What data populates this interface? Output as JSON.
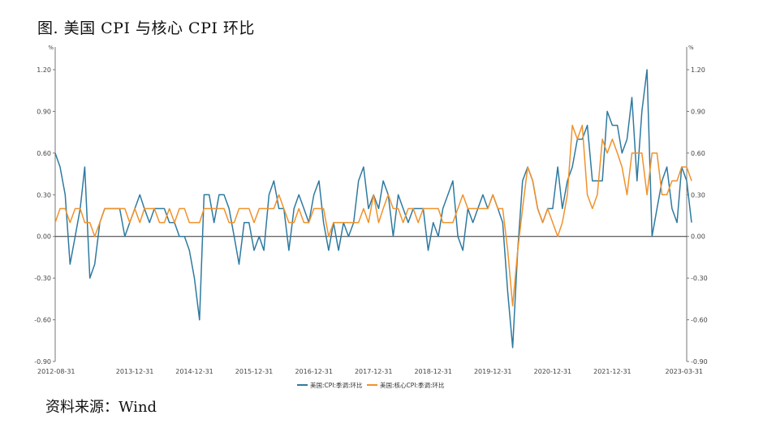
{
  "title": "图. 美国 CPI 与核心 CPI 环比",
  "source": "资料来源：Wind",
  "chart_data": {
    "type": "line",
    "y_unit_left": "%",
    "y_unit_right": "%",
    "ylim": [
      -0.9,
      1.2
    ],
    "yticks": [
      "1.20",
      "0.90",
      "0.60",
      "0.30",
      "0.00",
      "-0.30",
      "-0.60",
      "-0.90"
    ],
    "xlim": [
      "2012-08-31",
      "2023-03-31"
    ],
    "xticks": [
      "2012-08-31",
      "2013-12-31",
      "2014-12-31",
      "2015-12-31",
      "2016-12-31",
      "2017-12-31",
      "2018-12-31",
      "2019-12-31",
      "2020-12-31",
      "2021-12-31",
      "2023-03-31"
    ],
    "legend_position": "bottom-center",
    "series": [
      {
        "name": "美国:CPI:季调:环比",
        "color": "#2e7aa0",
        "points": [
          [
            "2012-08-31",
            0.6
          ],
          [
            "2012-09-30",
            0.5
          ],
          [
            "2012-10-31",
            0.3
          ],
          [
            "2012-11-30",
            -0.2
          ],
          [
            "2012-12-31",
            0.0
          ],
          [
            "2013-01-31",
            0.2
          ],
          [
            "2013-02-28",
            0.5
          ],
          [
            "2013-03-31",
            -0.3
          ],
          [
            "2013-04-30",
            -0.2
          ],
          [
            "2013-05-31",
            0.1
          ],
          [
            "2013-06-30",
            0.2
          ],
          [
            "2013-07-31",
            0.2
          ],
          [
            "2013-08-31",
            0.2
          ],
          [
            "2013-09-30",
            0.2
          ],
          [
            "2013-10-31",
            0.0
          ],
          [
            "2013-11-30",
            0.1
          ],
          [
            "2013-12-31",
            0.2
          ],
          [
            "2014-01-31",
            0.3
          ],
          [
            "2014-02-28",
            0.2
          ],
          [
            "2014-03-31",
            0.1
          ],
          [
            "2014-04-30",
            0.2
          ],
          [
            "2014-05-31",
            0.2
          ],
          [
            "2014-06-30",
            0.2
          ],
          [
            "2014-07-31",
            0.1
          ],
          [
            "2014-08-31",
            0.1
          ],
          [
            "2014-09-30",
            0.0
          ],
          [
            "2014-10-31",
            0.0
          ],
          [
            "2014-11-30",
            -0.1
          ],
          [
            "2014-12-31",
            -0.3
          ],
          [
            "2015-01-31",
            -0.6
          ],
          [
            "2015-02-28",
            0.3
          ],
          [
            "2015-03-31",
            0.3
          ],
          [
            "2015-04-30",
            0.1
          ],
          [
            "2015-05-31",
            0.3
          ],
          [
            "2015-06-30",
            0.3
          ],
          [
            "2015-07-31",
            0.2
          ],
          [
            "2015-08-31",
            0.0
          ],
          [
            "2015-09-30",
            -0.2
          ],
          [
            "2015-10-31",
            0.1
          ],
          [
            "2015-11-30",
            0.1
          ],
          [
            "2015-12-31",
            -0.1
          ],
          [
            "2016-01-31",
            0.0
          ],
          [
            "2016-02-29",
            -0.1
          ],
          [
            "2016-03-31",
            0.3
          ],
          [
            "2016-04-30",
            0.4
          ],
          [
            "2016-05-31",
            0.2
          ],
          [
            "2016-06-30",
            0.2
          ],
          [
            "2016-07-31",
            -0.1
          ],
          [
            "2016-08-31",
            0.2
          ],
          [
            "2016-09-30",
            0.3
          ],
          [
            "2016-10-31",
            0.2
          ],
          [
            "2016-11-30",
            0.1
          ],
          [
            "2016-12-31",
            0.3
          ],
          [
            "2017-01-31",
            0.4
          ],
          [
            "2017-02-28",
            0.1
          ],
          [
            "2017-03-31",
            -0.1
          ],
          [
            "2017-04-30",
            0.1
          ],
          [
            "2017-05-31",
            -0.1
          ],
          [
            "2017-06-30",
            0.1
          ],
          [
            "2017-07-31",
            0.0
          ],
          [
            "2017-08-31",
            0.1
          ],
          [
            "2017-09-30",
            0.4
          ],
          [
            "2017-10-31",
            0.5
          ],
          [
            "2017-11-30",
            0.2
          ],
          [
            "2017-12-31",
            0.3
          ],
          [
            "2018-01-31",
            0.2
          ],
          [
            "2018-02-28",
            0.4
          ],
          [
            "2018-03-31",
            0.3
          ],
          [
            "2018-04-30",
            0.0
          ],
          [
            "2018-05-31",
            0.3
          ],
          [
            "2018-06-30",
            0.2
          ],
          [
            "2018-07-31",
            0.1
          ],
          [
            "2018-08-31",
            0.2
          ],
          [
            "2018-09-30",
            0.2
          ],
          [
            "2018-10-31",
            0.2
          ],
          [
            "2018-11-30",
            -0.1
          ],
          [
            "2018-12-31",
            0.1
          ],
          [
            "2019-01-31",
            0.0
          ],
          [
            "2019-02-28",
            0.2
          ],
          [
            "2019-03-31",
            0.3
          ],
          [
            "2019-04-30",
            0.4
          ],
          [
            "2019-05-31",
            0.0
          ],
          [
            "2019-06-30",
            -0.1
          ],
          [
            "2019-07-31",
            0.2
          ],
          [
            "2019-08-31",
            0.1
          ],
          [
            "2019-09-30",
            0.2
          ],
          [
            "2019-10-31",
            0.3
          ],
          [
            "2019-11-30",
            0.2
          ],
          [
            "2019-12-31",
            0.3
          ],
          [
            "2020-01-31",
            0.2
          ],
          [
            "2020-02-29",
            0.1
          ],
          [
            "2020-03-31",
            -0.4
          ],
          [
            "2020-04-30",
            -0.8
          ],
          [
            "2020-05-31",
            -0.1
          ],
          [
            "2020-06-30",
            0.4
          ],
          [
            "2020-07-31",
            0.5
          ],
          [
            "2020-08-31",
            0.4
          ],
          [
            "2020-09-30",
            0.2
          ],
          [
            "2020-10-31",
            0.1
          ],
          [
            "2020-11-30",
            0.2
          ],
          [
            "2020-12-31",
            0.2
          ],
          [
            "2021-01-31",
            0.5
          ],
          [
            "2021-02-28",
            0.2
          ],
          [
            "2021-03-31",
            0.4
          ],
          [
            "2021-04-30",
            0.5
          ],
          [
            "2021-05-31",
            0.7
          ],
          [
            "2021-06-30",
            0.7
          ],
          [
            "2021-07-31",
            0.8
          ],
          [
            "2021-08-31",
            0.4
          ],
          [
            "2021-09-30",
            0.4
          ],
          [
            "2021-10-31",
            0.4
          ],
          [
            "2021-11-30",
            0.9
          ],
          [
            "2021-12-31",
            0.8
          ],
          [
            "2022-01-31",
            0.8
          ],
          [
            "2022-02-28",
            0.6
          ],
          [
            "2022-03-31",
            0.7
          ],
          [
            "2022-04-30",
            1.0
          ],
          [
            "2022-05-31",
            0.4
          ],
          [
            "2022-06-30",
            0.9
          ],
          [
            "2022-07-31",
            1.2
          ],
          [
            "2022-08-31",
            0.0
          ],
          [
            "2022-09-30",
            0.2
          ],
          [
            "2022-10-31",
            0.4
          ],
          [
            "2022-11-30",
            0.5
          ],
          [
            "2022-12-31",
            0.2
          ],
          [
            "2023-01-31",
            0.1
          ],
          [
            "2023-02-28",
            0.5
          ],
          [
            "2023-03-31",
            0.4
          ],
          [
            "2023-04-30",
            0.1
          ]
        ]
      },
      {
        "name": "美国:核心CPI:季调:环比",
        "color": "#f0922a",
        "points": [
          [
            "2012-08-31",
            0.1
          ],
          [
            "2012-09-30",
            0.2
          ],
          [
            "2012-10-31",
            0.2
          ],
          [
            "2012-11-30",
            0.1
          ],
          [
            "2012-12-31",
            0.2
          ],
          [
            "2013-01-31",
            0.2
          ],
          [
            "2013-02-28",
            0.1
          ],
          [
            "2013-03-31",
            0.1
          ],
          [
            "2013-04-30",
            0.0
          ],
          [
            "2013-05-31",
            0.1
          ],
          [
            "2013-06-30",
            0.2
          ],
          [
            "2013-07-31",
            0.2
          ],
          [
            "2013-08-31",
            0.2
          ],
          [
            "2013-09-30",
            0.2
          ],
          [
            "2013-10-31",
            0.2
          ],
          [
            "2013-11-30",
            0.1
          ],
          [
            "2013-12-31",
            0.2
          ],
          [
            "2014-01-31",
            0.1
          ],
          [
            "2014-02-28",
            0.2
          ],
          [
            "2014-03-31",
            0.2
          ],
          [
            "2014-04-30",
            0.2
          ],
          [
            "2014-05-31",
            0.1
          ],
          [
            "2014-06-30",
            0.1
          ],
          [
            "2014-07-31",
            0.2
          ],
          [
            "2014-08-31",
            0.1
          ],
          [
            "2014-09-30",
            0.2
          ],
          [
            "2014-10-31",
            0.2
          ],
          [
            "2014-11-30",
            0.1
          ],
          [
            "2014-12-31",
            0.1
          ],
          [
            "2015-01-31",
            0.1
          ],
          [
            "2015-02-28",
            0.2
          ],
          [
            "2015-03-31",
            0.2
          ],
          [
            "2015-04-30",
            0.2
          ],
          [
            "2015-05-31",
            0.2
          ],
          [
            "2015-06-30",
            0.2
          ],
          [
            "2015-07-31",
            0.1
          ],
          [
            "2015-08-31",
            0.1
          ],
          [
            "2015-09-30",
            0.2
          ],
          [
            "2015-10-31",
            0.2
          ],
          [
            "2015-11-30",
            0.2
          ],
          [
            "2015-12-31",
            0.1
          ],
          [
            "2016-01-31",
            0.2
          ],
          [
            "2016-02-29",
            0.2
          ],
          [
            "2016-03-31",
            0.2
          ],
          [
            "2016-04-30",
            0.2
          ],
          [
            "2016-05-31",
            0.3
          ],
          [
            "2016-06-30",
            0.2
          ],
          [
            "2016-07-31",
            0.1
          ],
          [
            "2016-08-31",
            0.1
          ],
          [
            "2016-09-30",
            0.2
          ],
          [
            "2016-10-31",
            0.1
          ],
          [
            "2016-11-30",
            0.1
          ],
          [
            "2016-12-31",
            0.2
          ],
          [
            "2017-01-31",
            0.2
          ],
          [
            "2017-02-28",
            0.2
          ],
          [
            "2017-03-31",
            0.0
          ],
          [
            "2017-04-30",
            0.1
          ],
          [
            "2017-05-31",
            0.1
          ],
          [
            "2017-06-30",
            0.1
          ],
          [
            "2017-07-31",
            0.1
          ],
          [
            "2017-08-31",
            0.1
          ],
          [
            "2017-09-30",
            0.1
          ],
          [
            "2017-10-31",
            0.2
          ],
          [
            "2017-11-30",
            0.1
          ],
          [
            "2017-12-31",
            0.3
          ],
          [
            "2018-01-31",
            0.1
          ],
          [
            "2018-02-28",
            0.2
          ],
          [
            "2018-03-31",
            0.3
          ],
          [
            "2018-04-30",
            0.2
          ],
          [
            "2018-05-31",
            0.2
          ],
          [
            "2018-06-30",
            0.1
          ],
          [
            "2018-07-31",
            0.2
          ],
          [
            "2018-08-31",
            0.2
          ],
          [
            "2018-09-30",
            0.1
          ],
          [
            "2018-10-31",
            0.2
          ],
          [
            "2018-11-30",
            0.2
          ],
          [
            "2018-12-31",
            0.2
          ],
          [
            "2019-01-31",
            0.2
          ],
          [
            "2019-02-28",
            0.1
          ],
          [
            "2019-03-31",
            0.1
          ],
          [
            "2019-04-30",
            0.1
          ],
          [
            "2019-05-31",
            0.2
          ],
          [
            "2019-06-30",
            0.3
          ],
          [
            "2019-07-31",
            0.2
          ],
          [
            "2019-08-31",
            0.2
          ],
          [
            "2019-09-30",
            0.2
          ],
          [
            "2019-10-31",
            0.2
          ],
          [
            "2019-11-30",
            0.2
          ],
          [
            "2019-12-31",
            0.3
          ],
          [
            "2020-01-31",
            0.2
          ],
          [
            "2020-02-29",
            0.2
          ],
          [
            "2020-03-31",
            -0.1
          ],
          [
            "2020-04-30",
            -0.5
          ],
          [
            "2020-05-31",
            -0.1
          ],
          [
            "2020-06-30",
            0.2
          ],
          [
            "2020-07-31",
            0.5
          ],
          [
            "2020-08-31",
            0.4
          ],
          [
            "2020-09-30",
            0.2
          ],
          [
            "2020-10-31",
            0.1
          ],
          [
            "2020-11-30",
            0.2
          ],
          [
            "2020-12-31",
            0.1
          ],
          [
            "2021-01-31",
            0.0
          ],
          [
            "2021-02-28",
            0.1
          ],
          [
            "2021-03-31",
            0.3
          ],
          [
            "2021-04-30",
            0.8
          ],
          [
            "2021-05-31",
            0.7
          ],
          [
            "2021-06-30",
            0.8
          ],
          [
            "2021-07-31",
            0.3
          ],
          [
            "2021-08-31",
            0.2
          ],
          [
            "2021-09-30",
            0.3
          ],
          [
            "2021-10-31",
            0.7
          ],
          [
            "2021-11-30",
            0.6
          ],
          [
            "2021-12-31",
            0.7
          ],
          [
            "2022-01-31",
            0.6
          ],
          [
            "2022-02-28",
            0.5
          ],
          [
            "2022-03-31",
            0.3
          ],
          [
            "2022-04-30",
            0.6
          ],
          [
            "2022-05-31",
            0.6
          ],
          [
            "2022-06-30",
            0.6
          ],
          [
            "2022-07-31",
            0.3
          ],
          [
            "2022-08-31",
            0.6
          ],
          [
            "2022-09-30",
            0.6
          ],
          [
            "2022-10-31",
            0.3
          ],
          [
            "2022-11-30",
            0.3
          ],
          [
            "2022-12-31",
            0.4
          ],
          [
            "2023-01-31",
            0.4
          ],
          [
            "2023-02-28",
            0.5
          ],
          [
            "2023-03-31",
            0.5
          ],
          [
            "2023-04-30",
            0.4
          ]
        ]
      }
    ]
  }
}
